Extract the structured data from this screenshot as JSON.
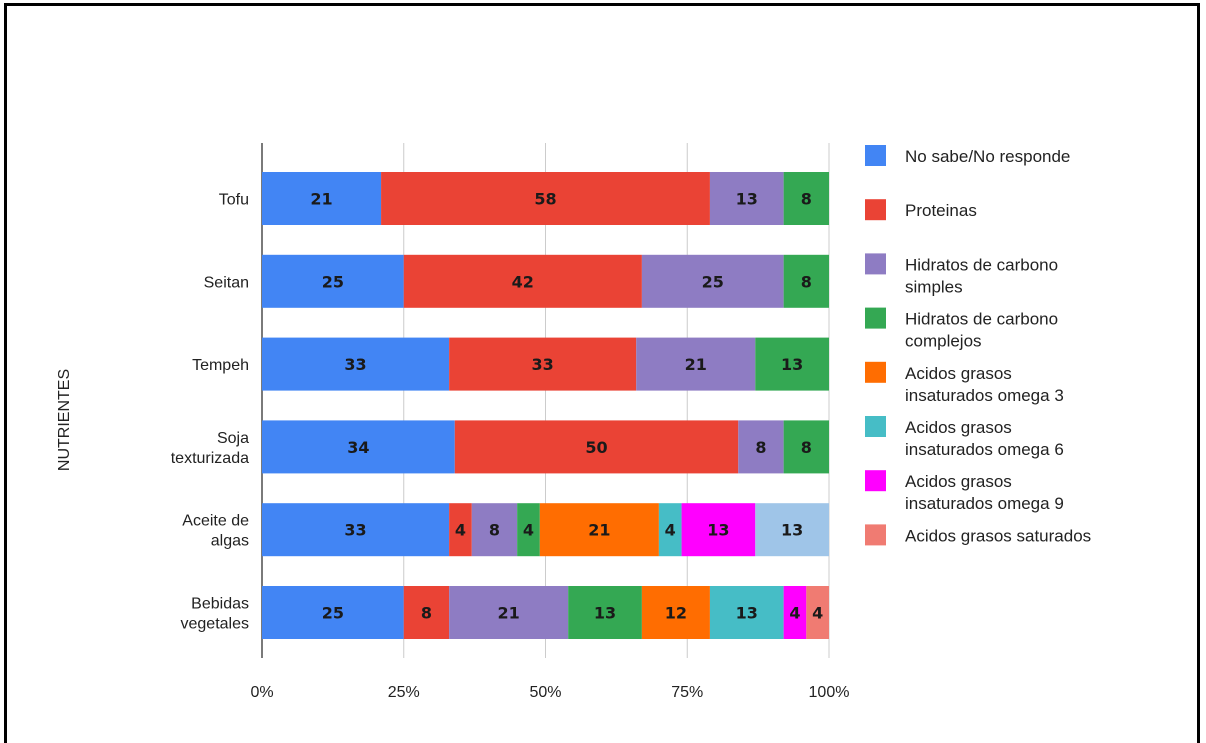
{
  "chart_data": {
    "type": "bar",
    "orientation": "horizontal",
    "stacked": true,
    "title": "",
    "ylabel": "NUTRIENTES",
    "xlabel": "",
    "xlim": [
      0,
      100
    ],
    "x_ticks": [
      "0%",
      "25%",
      "50%",
      "75%",
      "100%"
    ],
    "grid": true,
    "legend_position": "right",
    "categories": [
      [
        "Tofu"
      ],
      [
        "Seitan"
      ],
      [
        "Tempeh"
      ],
      [
        "Soja",
        "texturizada"
      ],
      [
        "Aceite de",
        "algas"
      ],
      [
        "Bebidas",
        "vegetales"
      ]
    ],
    "series": [
      {
        "name": [
          "No sabe/No responde"
        ],
        "color": "#4285f4",
        "values": [
          21,
          25,
          33,
          34,
          33,
          25
        ]
      },
      {
        "name": [
          "Proteinas"
        ],
        "color": "#ea4335",
        "values": [
          58,
          42,
          33,
          50,
          4,
          8
        ]
      },
      {
        "name": [
          "Hidratos de carbono",
          "simples"
        ],
        "color": "#8e7cc3",
        "values": [
          13,
          25,
          21,
          8,
          8,
          21
        ]
      },
      {
        "name": [
          "Hidratos de carbono",
          "complejos"
        ],
        "color": "#34a853",
        "values": [
          8,
          8,
          13,
          8,
          4,
          13
        ]
      },
      {
        "name": [
          "Acidos grasos",
          "insaturados omega 3"
        ],
        "color": "#ff6d01",
        "values": [
          0,
          0,
          0,
          0,
          21,
          12
        ]
      },
      {
        "name": [
          "Acidos grasos",
          "insaturados omega 6"
        ],
        "color": "#46bdc6",
        "values": [
          0,
          0,
          0,
          0,
          4,
          13
        ]
      },
      {
        "name": [
          "Acidos grasos",
          "insaturados omega 9"
        ],
        "color": "#ff00ff",
        "values": [
          0,
          0,
          0,
          0,
          13,
          4
        ]
      },
      {
        "name": [
          "Acidos grasos saturados"
        ],
        "color": "#f07b72",
        "values": [
          0,
          0,
          0,
          0,
          0,
          4
        ]
      }
    ],
    "unlabeled_remainder": {
      "color": "#9fc5e8",
      "values": [
        0,
        0,
        0,
        0,
        13,
        0
      ]
    }
  }
}
